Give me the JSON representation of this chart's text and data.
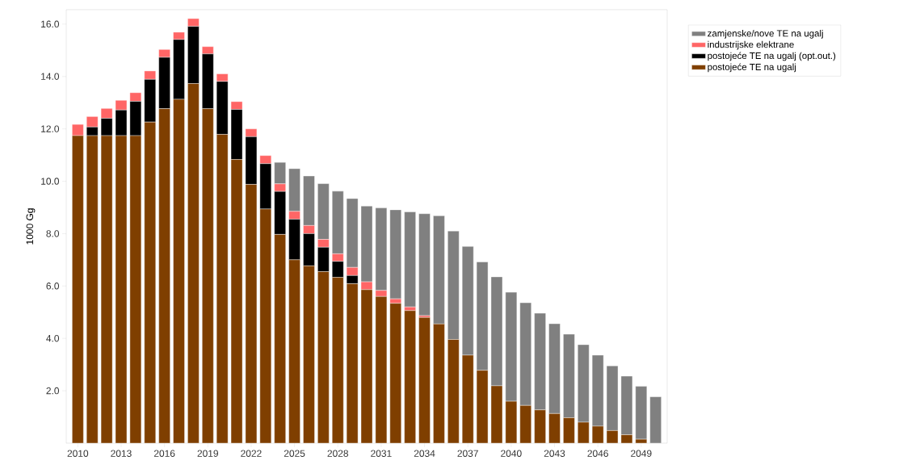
{
  "chart_data": {
    "type": "bar",
    "stacked": true,
    "ylabel": "1000 Gg",
    "categories": [
      "2010",
      null,
      null,
      "2013",
      null,
      null,
      "2016",
      null,
      null,
      "2019",
      null,
      null,
      "2022",
      null,
      null,
      "2025",
      null,
      null,
      "2028",
      null,
      null,
      "2031",
      null,
      null,
      "2034",
      null,
      null,
      "2037",
      null,
      null,
      "2040",
      null,
      null,
      "2043",
      null,
      null,
      "2046",
      null,
      null,
      "2049",
      null
    ],
    "series": [
      {
        "name": "postojeće TE na ugalj",
        "color": "#7f3f00",
        "values": [
          11.74,
          11.74,
          11.74,
          11.74,
          11.74,
          12.26,
          12.77,
          13.13,
          13.73,
          12.77,
          11.79,
          10.83,
          9.88,
          8.94,
          7.97,
          7.0,
          6.77,
          6.55,
          6.33,
          6.09,
          5.86,
          5.6,
          5.34,
          5.06,
          4.8,
          4.55,
          3.96,
          3.36,
          2.78,
          2.19,
          1.6,
          1.44,
          1.27,
          1.13,
          0.97,
          0.8,
          0.65,
          0.48,
          0.32,
          0.15,
          0
        ]
      },
      {
        "name": "postojeće TE na ugalj (opt.out.)",
        "color": "#000000",
        "values": [
          0,
          0.33,
          0.66,
          0.98,
          1.31,
          1.63,
          1.96,
          2.28,
          2.18,
          2.09,
          2.02,
          1.91,
          1.82,
          1.73,
          1.64,
          1.55,
          1.23,
          0.93,
          0.61,
          0.31,
          0,
          0,
          0,
          0,
          0,
          0,
          0,
          0,
          0,
          0,
          0,
          0,
          0,
          0,
          0,
          0,
          0,
          0,
          0,
          0,
          0
        ]
      },
      {
        "name": "industrijske elektrane",
        "color": "#ff6666",
        "values": [
          0.43,
          0.4,
          0.38,
          0.37,
          0.33,
          0.32,
          0.3,
          0.28,
          0.3,
          0.28,
          0.29,
          0.3,
          0.3,
          0.31,
          0.29,
          0.3,
          0.31,
          0.3,
          0.29,
          0.31,
          0.3,
          0.23,
          0.17,
          0.14,
          0.07,
          0,
          0,
          0,
          0,
          0,
          0,
          0,
          0,
          0,
          0,
          0,
          0,
          0,
          0,
          0,
          0
        ]
      },
      {
        "name": "zamjenske/nove TE na ugalj",
        "color": "#808080",
        "values": [
          0,
          0,
          0,
          0,
          0,
          0,
          0,
          0,
          0,
          0,
          0,
          0,
          0,
          0,
          0.82,
          1.63,
          1.89,
          2.13,
          2.39,
          2.63,
          2.89,
          3.15,
          3.4,
          3.63,
          3.89,
          4.13,
          4.14,
          4.15,
          4.14,
          4.16,
          4.16,
          3.92,
          3.69,
          3.43,
          3.19,
          2.96,
          2.71,
          2.47,
          2.24,
          2.02,
          1.77
        ]
      }
    ],
    "ylim": [
      0,
      16.55
    ],
    "yticks": [
      {
        "value": 2,
        "label": "2.0"
      },
      {
        "value": 4,
        "label": "4.0"
      },
      {
        "value": 6,
        "label": "6.0"
      },
      {
        "value": 8,
        "label": "8.0"
      },
      {
        "value": 10,
        "label": "10.0"
      },
      {
        "value": 12,
        "label": "12.0"
      },
      {
        "value": 14,
        "label": "14.0"
      },
      {
        "value": 16,
        "label": "16.0"
      }
    ],
    "grid": false,
    "legend": "top right"
  }
}
